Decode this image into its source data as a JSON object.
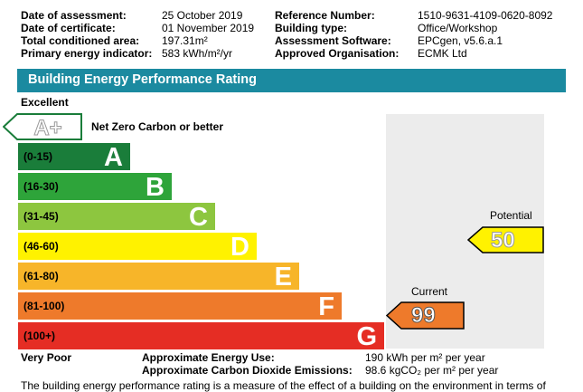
{
  "assessment": {
    "left": [
      {
        "label": "Date of assessment:",
        "value": "25 October 2019"
      },
      {
        "label": "Date of certificate:",
        "value": "01 November 2019"
      },
      {
        "label": "Total conditioned area:",
        "value": "197.31m²"
      },
      {
        "label": "Primary energy indicator:",
        "value": "583 kWh/m²/yr"
      }
    ],
    "right": [
      {
        "label": "Reference Number:",
        "value": "1510-9631-4109-0620-8092"
      },
      {
        "label": "Building type:",
        "value": "Office/Workshop"
      },
      {
        "label": "Assessment Software:",
        "value": "EPCgen, v5.6.a.1"
      },
      {
        "label": "Approved Organisation:",
        "value": "ECMK Ltd"
      }
    ]
  },
  "rating": {
    "title": "Building Energy Performance Rating",
    "excellent_label": "Excellent",
    "very_poor_label": "Very Poor",
    "net_zero": {
      "letter": "A+",
      "label": "Net Zero Carbon or better"
    },
    "bands": [
      {
        "range": "(0-15)",
        "letter": "A",
        "color": "#1a7d3a"
      },
      {
        "range": "(16-30)",
        "letter": "B",
        "color": "#2ea43a"
      },
      {
        "range": "(31-45)",
        "letter": "C",
        "color": "#8dc63f"
      },
      {
        "range": "(46-60)",
        "letter": "D",
        "color": "#fff200"
      },
      {
        "range": "(61-80)",
        "letter": "E",
        "color": "#f7b529"
      },
      {
        "range": "(81-100)",
        "letter": "F",
        "color": "#ee7a2b"
      },
      {
        "range": "(100+)",
        "letter": "G",
        "color": "#e52d24"
      }
    ],
    "current": {
      "title": "Current",
      "value": "99",
      "color": "#ee7a2b"
    },
    "potential": {
      "title": "Potential",
      "value": "50",
      "color": "#fff200"
    }
  },
  "footer": {
    "energy_use_label": "Approximate Energy Use:",
    "energy_use_value": "190 kWh per m² per year",
    "co2_label": "Approximate Carbon Dioxide Emissions:",
    "co2_value": "98.6 kgCO₂ per m² per year",
    "description": "The building energy performance rating is a measure of the effect of a building on the environment in terms of"
  }
}
